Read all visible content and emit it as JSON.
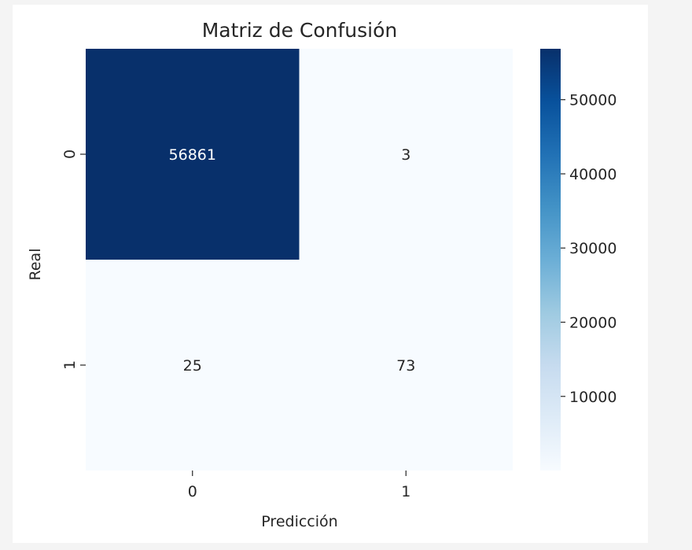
{
  "chart_data": {
    "type": "heatmap",
    "title": "Matriz de Confusión",
    "xlabel": "Predicción",
    "ylabel": "Real",
    "x_categories": [
      "0",
      "1"
    ],
    "y_categories": [
      "0",
      "1"
    ],
    "values": [
      [
        56861,
        3
      ],
      [
        25,
        73
      ]
    ],
    "colormap": "Blues",
    "colors": {
      "low": "#f7fbff",
      "high": "#08306b"
    },
    "colorbar": {
      "ticks": [
        "10000",
        "20000",
        "30000",
        "40000",
        "50000"
      ],
      "range": [
        3,
        56861
      ]
    },
    "annotation_colors": {
      "on_dark": "#ffffff",
      "on_light": "#262626"
    }
  }
}
